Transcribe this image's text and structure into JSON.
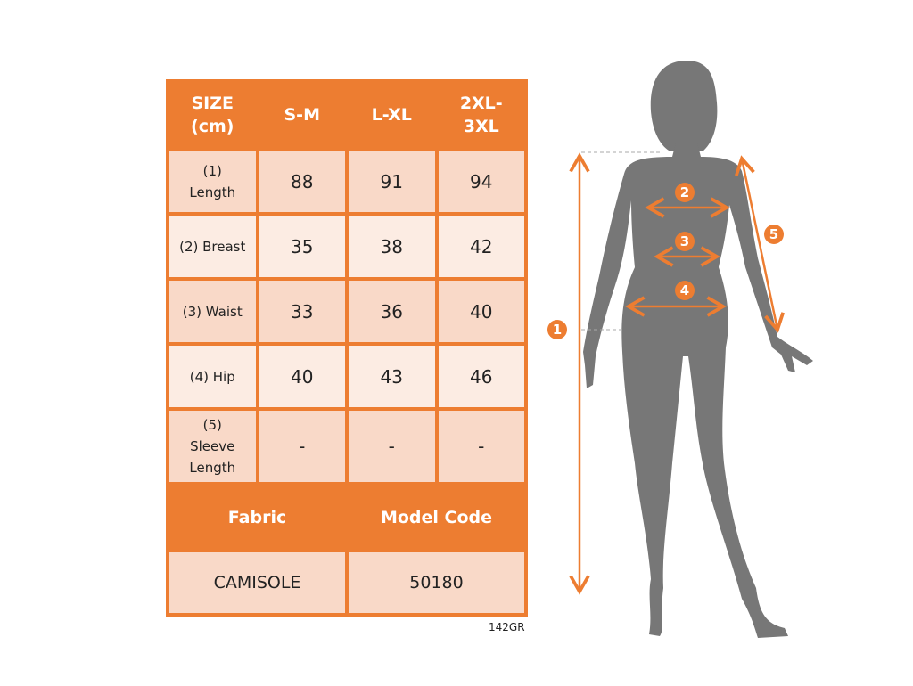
{
  "table": {
    "header": [
      "SIZE\n(cm)",
      "S-M",
      "L-XL",
      "2XL-\n3XL"
    ],
    "rows": [
      {
        "label": "(1)\nLength",
        "values": [
          "88",
          "91",
          "94"
        ]
      },
      {
        "label": "(2) Breast",
        "values": [
          "35",
          "38",
          "42"
        ]
      },
      {
        "label": "(3) Waist",
        "values": [
          "33",
          "36",
          "40"
        ]
      },
      {
        "label": "(4) Hip",
        "values": [
          "40",
          "43",
          "46"
        ]
      },
      {
        "label": "(5)\nSleeve\nLength",
        "values": [
          "-",
          "-",
          "-"
        ]
      }
    ],
    "fabric_label": "Fabric",
    "model_code_label": "Model Code",
    "fabric_value": "CAMISOLE",
    "model_code_value": "50180"
  },
  "product_code": "142GR",
  "figure": {
    "markers": [
      "1",
      "2",
      "3",
      "4",
      "5"
    ]
  },
  "colors": {
    "accent": "#ED7D31",
    "silhouette": "#777777",
    "row_dark": "#F9D9C8",
    "row_light": "#FCECE3"
  }
}
